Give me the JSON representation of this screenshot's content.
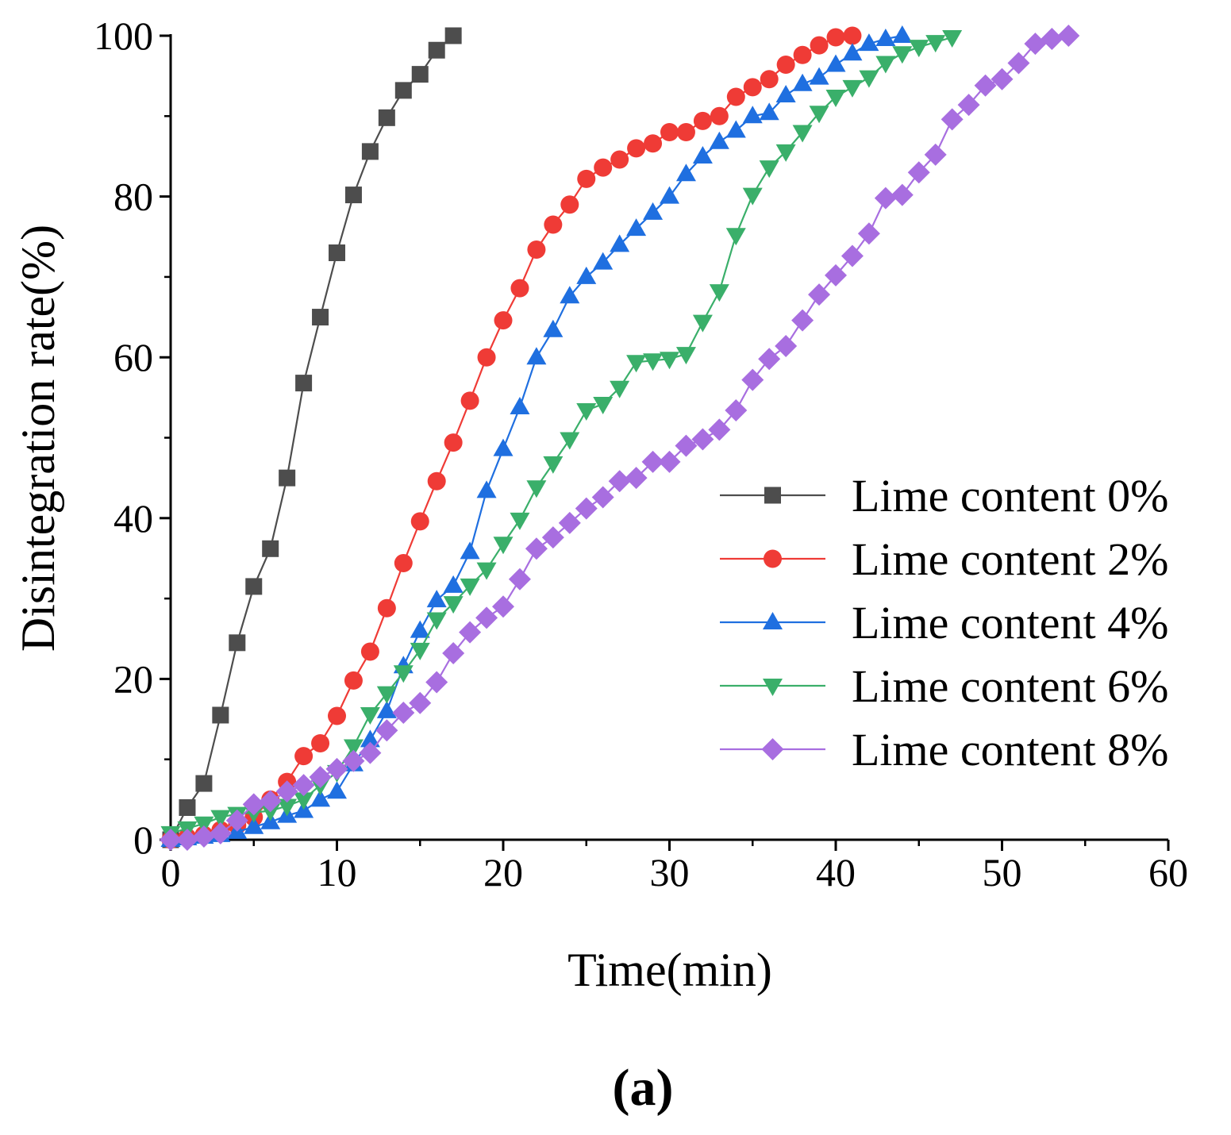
{
  "chart_data": {
    "type": "line",
    "title": "",
    "panel_label": "(a)",
    "xlabel": "Time(min)",
    "ylabel": "Disintegration rate(%)",
    "xlim": [
      0,
      60
    ],
    "ylim": [
      0,
      100
    ],
    "xticks": [
      0,
      10,
      20,
      30,
      40,
      50,
      60
    ],
    "yticks": [
      0,
      20,
      40,
      60,
      80,
      100
    ],
    "grid": false,
    "legend_position": "bottom-right",
    "series": [
      {
        "name": "Lime content 0%",
        "color": "#4d4d4d",
        "marker": "square",
        "x": [
          0,
          1,
          2,
          3,
          4,
          5,
          6,
          7,
          8,
          9,
          10,
          11,
          12,
          13,
          14,
          15,
          16,
          17
        ],
        "y": [
          0,
          4,
          7,
          15.5,
          24.5,
          31.5,
          36.2,
          45,
          56.8,
          65,
          73,
          80.2,
          85.6,
          89.8,
          93.2,
          95.2,
          98.2,
          100
        ]
      },
      {
        "name": "Lime content 2%",
        "color": "#ef3b36",
        "marker": "circle",
        "x": [
          0,
          1,
          2,
          3,
          4,
          5,
          6,
          7,
          8,
          9,
          10,
          11,
          12,
          13,
          14,
          15,
          16,
          17,
          18,
          19,
          20,
          21,
          22,
          23,
          24,
          25,
          26,
          27,
          28,
          29,
          30,
          31,
          32,
          33,
          34,
          35,
          36,
          37,
          38,
          39,
          40,
          41
        ],
        "y": [
          0,
          0.3,
          0.6,
          1.2,
          1.8,
          2.8,
          5,
          7.2,
          10.4,
          12,
          15.4,
          19.8,
          23.4,
          28.8,
          34.4,
          39.6,
          44.6,
          49.4,
          54.6,
          60,
          64.6,
          68.6,
          73.4,
          76.5,
          79,
          82.2,
          83.6,
          84.6,
          86,
          86.6,
          88,
          88,
          89.4,
          90,
          92.4,
          93.6,
          94.6,
          96.4,
          97.6,
          98.8,
          99.8,
          100
        ]
      },
      {
        "name": "Lime content 4%",
        "color": "#1f6fe0",
        "marker": "triangle-up",
        "x": [
          0,
          1,
          2,
          3,
          4,
          5,
          6,
          7,
          8,
          9,
          10,
          11,
          12,
          13,
          14,
          15,
          16,
          17,
          18,
          19,
          20,
          21,
          22,
          23,
          24,
          25,
          26,
          27,
          28,
          29,
          30,
          31,
          32,
          33,
          34,
          35,
          36,
          37,
          38,
          39,
          40,
          41,
          42,
          43,
          44
        ],
        "y": [
          0,
          0.2,
          0.4,
          0.6,
          1,
          1.6,
          2.2,
          3,
          3.6,
          5,
          6,
          9.4,
          12.4,
          16,
          21.6,
          26,
          29.8,
          31.6,
          35.8,
          43.4,
          48.6,
          53.8,
          60,
          63.4,
          67.6,
          70,
          71.8,
          74,
          76,
          78,
          80,
          82.8,
          85,
          86.8,
          88.2,
          90,
          90.4,
          92.6,
          94,
          94.8,
          96.4,
          97.8,
          99,
          99.6,
          100
        ]
      },
      {
        "name": "Lime content 6%",
        "color": "#3aaf6a",
        "marker": "triangle-down",
        "x": [
          0,
          1,
          2,
          3,
          4,
          5,
          6,
          7,
          8,
          9,
          10,
          11,
          12,
          13,
          14,
          15,
          16,
          17,
          18,
          19,
          20,
          21,
          22,
          23,
          24,
          25,
          26,
          27,
          28,
          29,
          30,
          31,
          32,
          33,
          34,
          35,
          36,
          37,
          38,
          39,
          40,
          41,
          42,
          43,
          44,
          45,
          46,
          47
        ],
        "y": [
          0.8,
          1.4,
          2,
          2.8,
          3.2,
          3.4,
          3.6,
          4.2,
          5,
          6.8,
          8.4,
          11.6,
          15.6,
          18.2,
          20.8,
          23.6,
          27.4,
          29.4,
          31.6,
          33.6,
          36.8,
          39.8,
          43.8,
          46.8,
          49.8,
          53.4,
          54.2,
          56.2,
          59.4,
          59.6,
          59.8,
          60.4,
          64.4,
          68.2,
          75.2,
          80.2,
          83.6,
          85.6,
          88,
          90.4,
          92.4,
          93.6,
          94.8,
          96.6,
          97.8,
          98.6,
          99.2,
          99.8
        ]
      },
      {
        "name": "Lime content 8%",
        "color": "#a86ee0",
        "marker": "diamond",
        "x": [
          0,
          1,
          2,
          3,
          4,
          5,
          6,
          7,
          8,
          9,
          10,
          11,
          12,
          13,
          14,
          15,
          16,
          17,
          18,
          19,
          20,
          21,
          22,
          23,
          24,
          25,
          26,
          27,
          28,
          29,
          30,
          31,
          32,
          33,
          34,
          35,
          36,
          37,
          38,
          39,
          40,
          41,
          42,
          43,
          44,
          45,
          46,
          47,
          48,
          49,
          50,
          51,
          52,
          53,
          54
        ],
        "y": [
          0,
          0,
          0.4,
          0.8,
          2.4,
          4.4,
          4.8,
          6,
          6.8,
          7.8,
          8.8,
          9.8,
          10.8,
          13.6,
          15.8,
          17,
          19.6,
          23.2,
          25.8,
          27.6,
          29,
          32.4,
          36.2,
          37.6,
          39.4,
          41.2,
          42.6,
          44.6,
          45,
          47,
          47,
          49,
          49.8,
          51,
          53.4,
          57.2,
          59.8,
          61.4,
          64.6,
          67.8,
          70.2,
          72.6,
          75.4,
          79.8,
          80.2,
          83,
          85.2,
          89.6,
          91.4,
          93.8,
          94.6,
          96.6,
          99,
          99.6,
          100
        ]
      }
    ]
  }
}
